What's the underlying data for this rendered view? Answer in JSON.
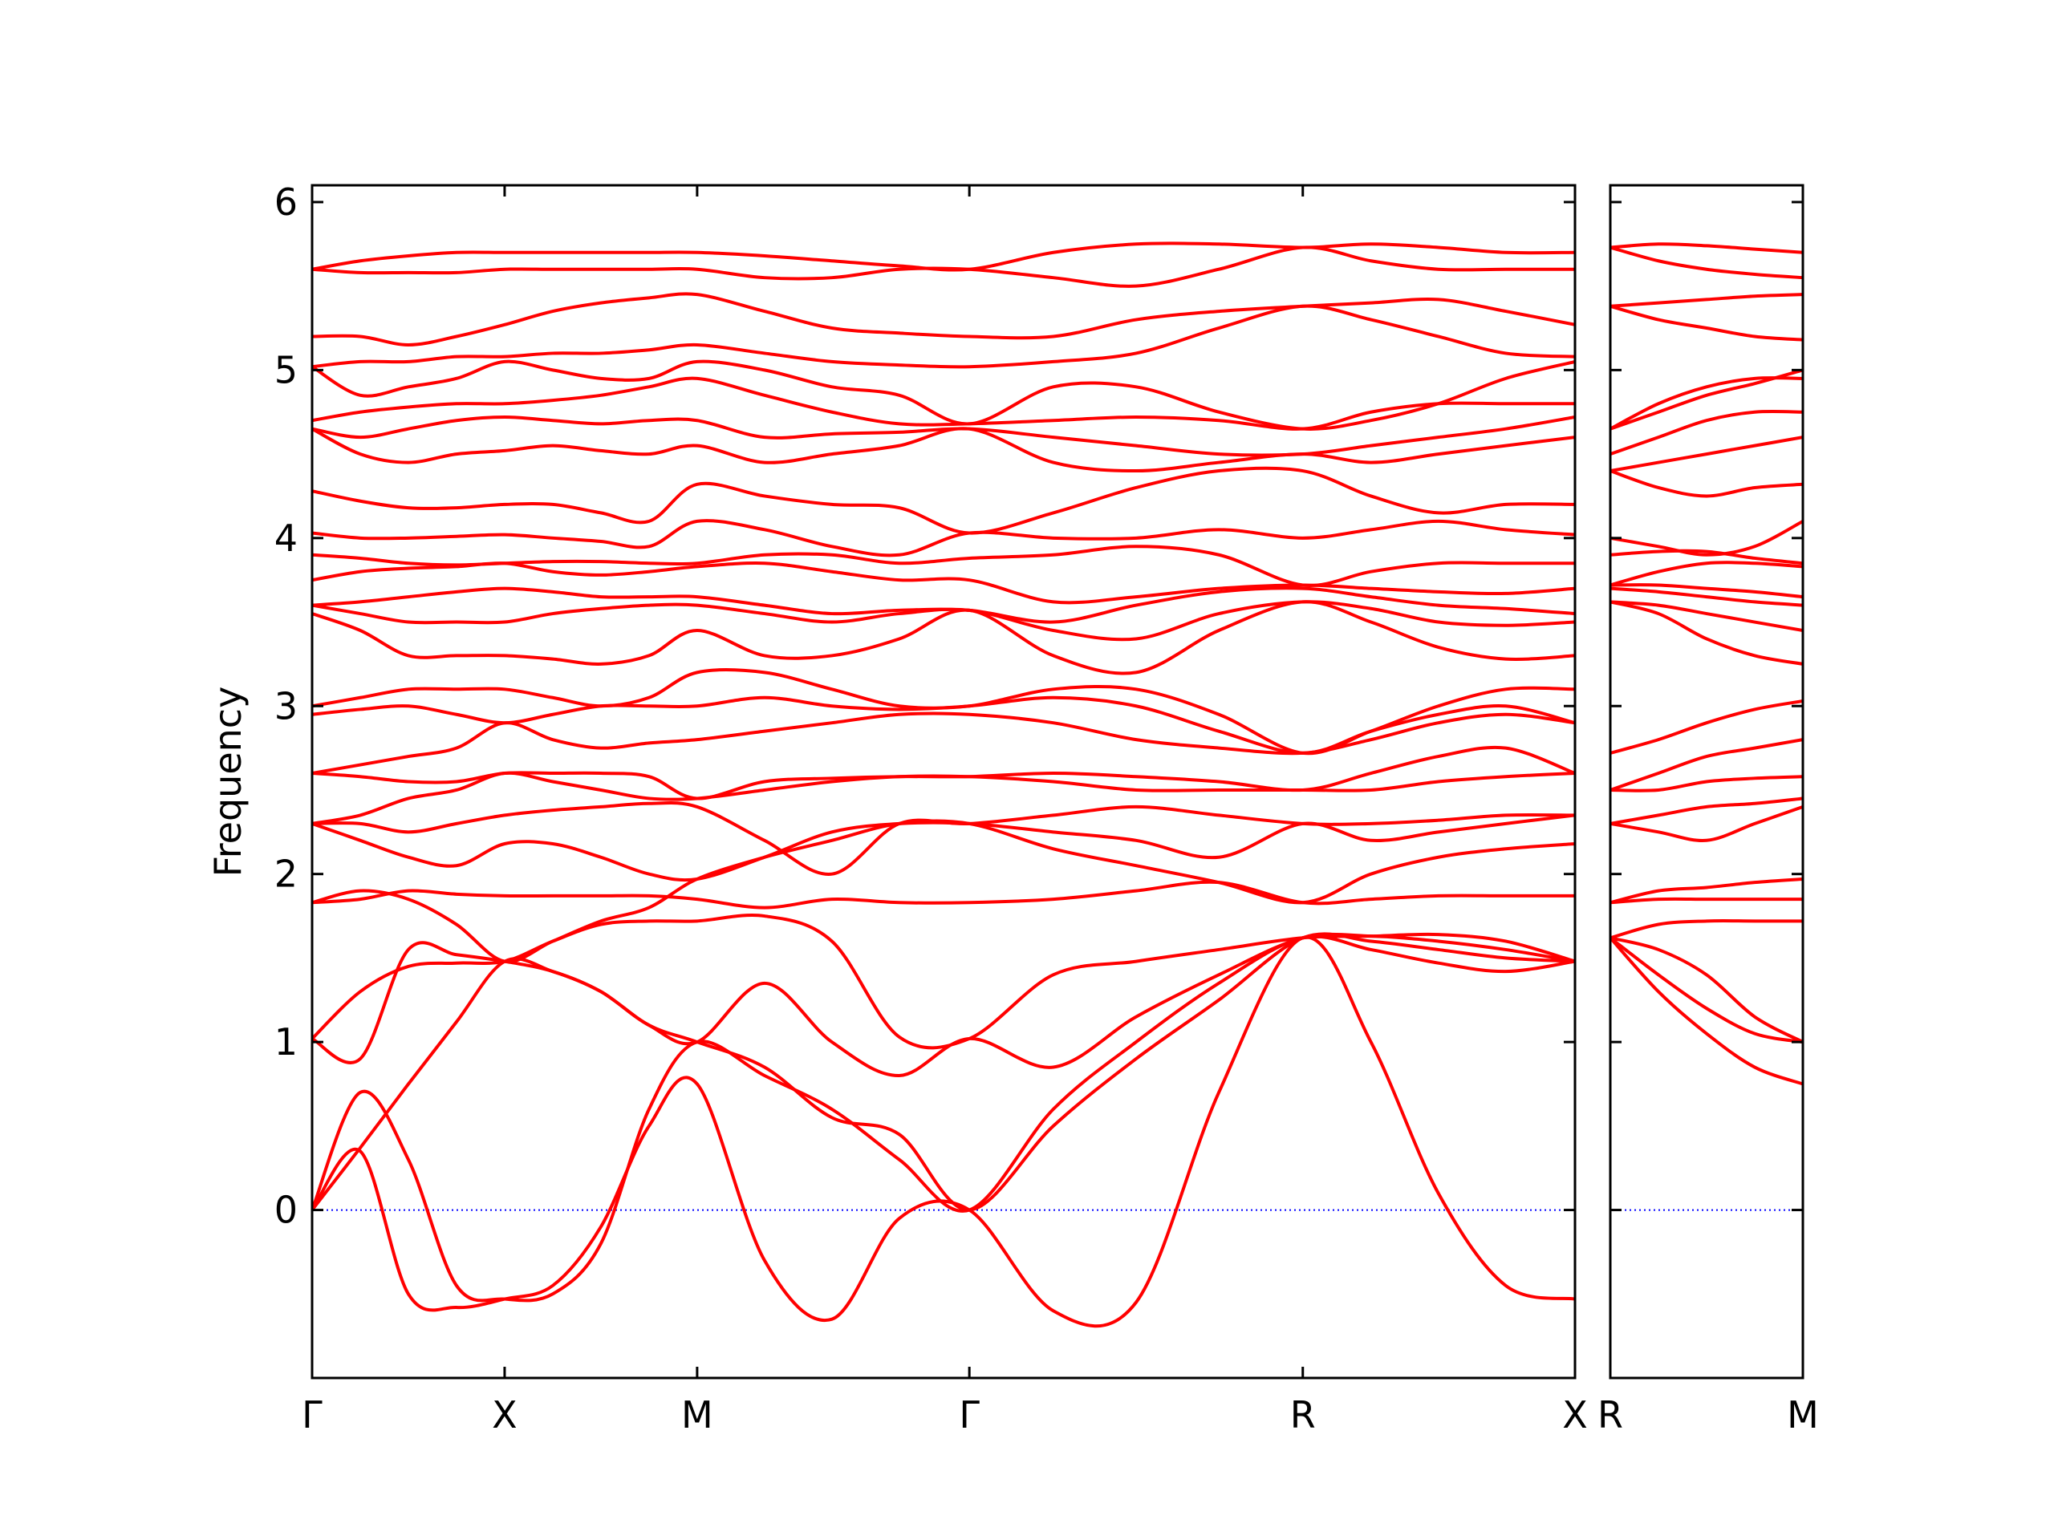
{
  "chart_data": [
    {
      "type": "line",
      "ylabel": "Frequency",
      "color": "#ff0000",
      "x": [
        0,
        0.25,
        0.5,
        0.75,
        1,
        1.25,
        1.5,
        1.75,
        2,
        2.35,
        2.7,
        3.05,
        3.414,
        3.85,
        4.28,
        4.71,
        5.146,
        5.5,
        5.85,
        6.2,
        6.56
      ],
      "xlim": [
        0,
        6.56
      ],
      "xticks": [
        {
          "value": 0,
          "label": "Γ"
        },
        {
          "value": 1,
          "label": "X"
        },
        {
          "value": 2,
          "label": "M"
        },
        {
          "value": 3.414,
          "label": "Γ"
        },
        {
          "value": 5.146,
          "label": "R"
        },
        {
          "value": 6.56,
          "label": "X"
        }
      ],
      "ylim": [
        -1.0,
        6.1
      ],
      "yticks": [
        0,
        1,
        2,
        3,
        4,
        5,
        6
      ],
      "ytick_labels": true,
      "hlines": [
        {
          "y": 0,
          "color": "#0000ff"
        }
      ],
      "series": [
        {
          "values": [
            0,
            0.35,
            -0.5,
            -0.58,
            -0.53,
            -0.45,
            -0.1,
            0.5,
            0.75,
            -0.3,
            -0.65,
            -0.05,
            0,
            -0.6,
            -0.55,
            0.7,
            1.62,
            1.0,
            0.1,
            -0.45,
            -0.53
          ]
        },
        {
          "values": [
            0,
            0.7,
            0.3,
            -0.45,
            -0.53,
            -0.5,
            -0.2,
            0.6,
            1.0,
            0.8,
            0.6,
            0.3,
            0,
            0.6,
            1.0,
            1.35,
            1.62,
            1.55,
            1.47,
            1.42,
            1.48
          ]
        },
        {
          "values": [
            0,
            0.37,
            0.75,
            1.12,
            1.48,
            1.42,
            1.3,
            1.1,
            1.0,
            0.85,
            0.55,
            0.45,
            0,
            0.5,
            0.9,
            1.25,
            1.62,
            1.6,
            1.55,
            1.5,
            1.48
          ]
        },
        {
          "values": [
            1.02,
            0.9,
            1.55,
            1.52,
            1.48,
            1.42,
            1.3,
            1.1,
            1.0,
            1.35,
            1.0,
            0.8,
            1.02,
            0.85,
            1.15,
            1.4,
            1.62,
            1.63,
            1.6,
            1.55,
            1.48
          ]
        },
        {
          "values": [
            1.02,
            1.3,
            1.45,
            1.47,
            1.48,
            1.6,
            1.7,
            1.72,
            1.72,
            1.75,
            1.6,
            1.03,
            1.02,
            1.4,
            1.48,
            1.55,
            1.62,
            1.63,
            1.64,
            1.6,
            1.48
          ]
        },
        {
          "values": [
            1.83,
            1.85,
            1.9,
            1.88,
            1.87,
            1.87,
            1.87,
            1.87,
            1.85,
            1.8,
            1.85,
            1.83,
            1.83,
            1.85,
            1.9,
            1.95,
            1.83,
            1.85,
            1.87,
            1.87,
            1.87
          ]
        },
        {
          "values": [
            1.83,
            1.9,
            1.85,
            1.7,
            1.48,
            1.6,
            1.72,
            1.8,
            1.97,
            2.1,
            2.2,
            2.3,
            2.3,
            2.15,
            2.05,
            1.95,
            1.83,
            2.0,
            2.1,
            2.15,
            2.18
          ]
        },
        {
          "values": [
            2.3,
            2.2,
            2.1,
            2.05,
            2.18,
            2.18,
            2.1,
            2.0,
            1.97,
            2.1,
            2.25,
            2.3,
            2.3,
            2.25,
            2.2,
            2.1,
            2.3,
            2.2,
            2.25,
            2.3,
            2.35
          ]
        },
        {
          "values": [
            2.3,
            2.3,
            2.25,
            2.3,
            2.35,
            2.38,
            2.4,
            2.42,
            2.4,
            2.2,
            2.0,
            2.3,
            2.3,
            2.35,
            2.4,
            2.35,
            2.3,
            2.3,
            2.32,
            2.35,
            2.35
          ]
        },
        {
          "values": [
            2.3,
            2.35,
            2.45,
            2.5,
            2.6,
            2.55,
            2.5,
            2.45,
            2.45,
            2.5,
            2.55,
            2.58,
            2.58,
            2.55,
            2.5,
            2.5,
            2.5,
            2.5,
            2.55,
            2.58,
            2.6
          ]
        },
        {
          "values": [
            2.6,
            2.58,
            2.55,
            2.55,
            2.6,
            2.6,
            2.6,
            2.58,
            2.45,
            2.55,
            2.57,
            2.58,
            2.58,
            2.6,
            2.58,
            2.55,
            2.5,
            2.6,
            2.7,
            2.75,
            2.6
          ]
        },
        {
          "values": [
            2.6,
            2.65,
            2.7,
            2.75,
            2.9,
            2.8,
            2.75,
            2.78,
            2.8,
            2.85,
            2.9,
            2.95,
            2.95,
            2.9,
            2.8,
            2.75,
            2.72,
            2.8,
            2.9,
            2.95,
            2.9
          ]
        },
        {
          "values": [
            2.95,
            2.98,
            3.0,
            2.95,
            2.9,
            2.95,
            3.0,
            3.0,
            3.0,
            3.05,
            3.0,
            2.98,
            3.0,
            3.05,
            3.0,
            2.85,
            2.72,
            2.85,
            2.95,
            3.0,
            2.9
          ]
        },
        {
          "values": [
            3.0,
            3.05,
            3.1,
            3.1,
            3.1,
            3.05,
            3.0,
            3.05,
            3.2,
            3.2,
            3.1,
            3.0,
            3.0,
            3.1,
            3.1,
            2.95,
            2.72,
            2.85,
            3.0,
            3.1,
            3.1
          ]
        },
        {
          "values": [
            3.55,
            3.45,
            3.3,
            3.3,
            3.3,
            3.28,
            3.25,
            3.3,
            3.45,
            3.3,
            3.3,
            3.4,
            3.57,
            3.3,
            3.2,
            3.45,
            3.62,
            3.5,
            3.35,
            3.28,
            3.3
          ]
        },
        {
          "values": [
            3.6,
            3.55,
            3.5,
            3.5,
            3.5,
            3.55,
            3.58,
            3.6,
            3.6,
            3.55,
            3.5,
            3.55,
            3.57,
            3.45,
            3.4,
            3.55,
            3.62,
            3.58,
            3.5,
            3.48,
            3.5
          ]
        },
        {
          "values": [
            3.6,
            3.62,
            3.65,
            3.68,
            3.7,
            3.68,
            3.65,
            3.65,
            3.65,
            3.6,
            3.55,
            3.57,
            3.57,
            3.5,
            3.6,
            3.68,
            3.7,
            3.65,
            3.6,
            3.58,
            3.55
          ]
        },
        {
          "values": [
            3.75,
            3.8,
            3.82,
            3.83,
            3.85,
            3.8,
            3.78,
            3.8,
            3.83,
            3.85,
            3.8,
            3.75,
            3.75,
            3.62,
            3.65,
            3.7,
            3.72,
            3.7,
            3.68,
            3.67,
            3.7
          ]
        },
        {
          "values": [
            3.9,
            3.88,
            3.85,
            3.84,
            3.85,
            3.86,
            3.86,
            3.85,
            3.85,
            3.9,
            3.9,
            3.85,
            3.88,
            3.9,
            3.95,
            3.9,
            3.72,
            3.8,
            3.85,
            3.85,
            3.85
          ]
        },
        {
          "values": [
            4.03,
            4.0,
            4.0,
            4.01,
            4.02,
            4.0,
            3.98,
            3.95,
            4.1,
            4.05,
            3.95,
            3.9,
            4.03,
            4.0,
            4.0,
            4.05,
            4.0,
            4.05,
            4.1,
            4.05,
            4.02
          ]
        },
        {
          "values": [
            4.28,
            4.22,
            4.18,
            4.18,
            4.2,
            4.2,
            4.15,
            4.1,
            4.32,
            4.25,
            4.2,
            4.18,
            4.03,
            4.15,
            4.3,
            4.4,
            4.4,
            4.25,
            4.15,
            4.2,
            4.2
          ]
        },
        {
          "values": [
            4.65,
            4.5,
            4.45,
            4.5,
            4.52,
            4.55,
            4.52,
            4.5,
            4.55,
            4.45,
            4.5,
            4.55,
            4.65,
            4.45,
            4.4,
            4.45,
            4.5,
            4.45,
            4.5,
            4.55,
            4.6
          ]
        },
        {
          "values": [
            4.65,
            4.6,
            4.65,
            4.7,
            4.72,
            4.7,
            4.68,
            4.7,
            4.7,
            4.6,
            4.62,
            4.63,
            4.65,
            4.6,
            4.55,
            4.5,
            4.5,
            4.55,
            4.6,
            4.65,
            4.72
          ]
        },
        {
          "values": [
            4.7,
            4.75,
            4.78,
            4.8,
            4.8,
            4.82,
            4.85,
            4.9,
            4.95,
            4.85,
            4.75,
            4.68,
            4.68,
            4.7,
            4.72,
            4.7,
            4.65,
            4.75,
            4.8,
            4.8,
            4.8
          ]
        },
        {
          "values": [
            5.02,
            4.85,
            4.9,
            4.95,
            5.05,
            5.0,
            4.95,
            4.95,
            5.05,
            5.0,
            4.9,
            4.85,
            4.68,
            4.9,
            4.9,
            4.75,
            4.65,
            4.7,
            4.8,
            4.95,
            5.05
          ]
        },
        {
          "values": [
            5.02,
            5.05,
            5.05,
            5.08,
            5.08,
            5.1,
            5.1,
            5.12,
            5.15,
            5.1,
            5.05,
            5.03,
            5.02,
            5.05,
            5.1,
            5.25,
            5.38,
            5.3,
            5.2,
            5.1,
            5.08
          ]
        },
        {
          "values": [
            5.2,
            5.2,
            5.15,
            5.2,
            5.27,
            5.35,
            5.4,
            5.43,
            5.45,
            5.35,
            5.25,
            5.22,
            5.2,
            5.2,
            5.3,
            5.35,
            5.38,
            5.4,
            5.42,
            5.35,
            5.27
          ]
        },
        {
          "values": [
            5.6,
            5.58,
            5.58,
            5.58,
            5.6,
            5.6,
            5.6,
            5.6,
            5.6,
            5.55,
            5.55,
            5.6,
            5.6,
            5.55,
            5.5,
            5.6,
            5.73,
            5.65,
            5.6,
            5.6,
            5.6
          ]
        },
        {
          "values": [
            5.6,
            5.65,
            5.68,
            5.7,
            5.7,
            5.7,
            5.7,
            5.7,
            5.7,
            5.68,
            5.65,
            5.62,
            5.6,
            5.7,
            5.75,
            5.75,
            5.73,
            5.75,
            5.73,
            5.7,
            5.7
          ]
        }
      ]
    },
    {
      "type": "line",
      "color": "#ff0000",
      "x": [
        0,
        0.25,
        0.5,
        0.75,
        1
      ],
      "xlim": [
        0,
        1
      ],
      "xticks": [
        {
          "value": 0,
          "label": "R"
        },
        {
          "value": 1,
          "label": "M"
        }
      ],
      "ylim": [
        -1.0,
        6.1
      ],
      "yticks": [
        0,
        1,
        2,
        3,
        4,
        5,
        6
      ],
      "ytick_labels": false,
      "hlines": [
        {
          "y": 0,
          "color": "#0000ff"
        }
      ],
      "series": [
        {
          "values": [
            1.62,
            1.3,
            1.05,
            0.85,
            0.75
          ]
        },
        {
          "values": [
            1.62,
            1.4,
            1.2,
            1.05,
            1.0
          ]
        },
        {
          "values": [
            1.62,
            1.55,
            1.4,
            1.15,
            1.0
          ]
        },
        {
          "values": [
            1.62,
            1.7,
            1.72,
            1.72,
            1.72
          ]
        },
        {
          "values": [
            1.83,
            1.85,
            1.85,
            1.85,
            1.85
          ]
        },
        {
          "values": [
            1.83,
            1.9,
            1.92,
            1.95,
            1.97
          ]
        },
        {
          "values": [
            2.3,
            2.25,
            2.2,
            2.3,
            2.4
          ]
        },
        {
          "values": [
            2.3,
            2.35,
            2.4,
            2.42,
            2.45
          ]
        },
        {
          "values": [
            2.5,
            2.5,
            2.55,
            2.57,
            2.58
          ]
        },
        {
          "values": [
            2.5,
            2.6,
            2.7,
            2.75,
            2.8
          ]
        },
        {
          "values": [
            2.72,
            2.8,
            2.9,
            2.98,
            3.03
          ]
        },
        {
          "values": [
            3.62,
            3.55,
            3.4,
            3.3,
            3.25
          ]
        },
        {
          "values": [
            3.62,
            3.6,
            3.55,
            3.5,
            3.45
          ]
        },
        {
          "values": [
            3.7,
            3.68,
            3.65,
            3.62,
            3.6
          ]
        },
        {
          "values": [
            3.72,
            3.72,
            3.7,
            3.68,
            3.65
          ]
        },
        {
          "values": [
            3.72,
            3.8,
            3.85,
            3.85,
            3.83
          ]
        },
        {
          "values": [
            3.9,
            3.92,
            3.92,
            3.88,
            3.85
          ]
        },
        {
          "values": [
            4.0,
            3.95,
            3.9,
            3.95,
            4.1
          ]
        },
        {
          "values": [
            4.4,
            4.3,
            4.25,
            4.3,
            4.32
          ]
        },
        {
          "values": [
            4.4,
            4.45,
            4.5,
            4.55,
            4.6
          ]
        },
        {
          "values": [
            4.5,
            4.6,
            4.7,
            4.75,
            4.75
          ]
        },
        {
          "values": [
            4.65,
            4.75,
            4.85,
            4.92,
            5.0
          ]
        },
        {
          "values": [
            4.65,
            4.8,
            4.9,
            4.95,
            4.95
          ]
        },
        {
          "values": [
            5.38,
            5.3,
            5.25,
            5.2,
            5.18
          ]
        },
        {
          "values": [
            5.38,
            5.4,
            5.42,
            5.44,
            5.45
          ]
        },
        {
          "values": [
            5.73,
            5.65,
            5.6,
            5.57,
            5.55
          ]
        },
        {
          "values": [
            5.73,
            5.75,
            5.74,
            5.72,
            5.7
          ]
        }
      ]
    }
  ]
}
